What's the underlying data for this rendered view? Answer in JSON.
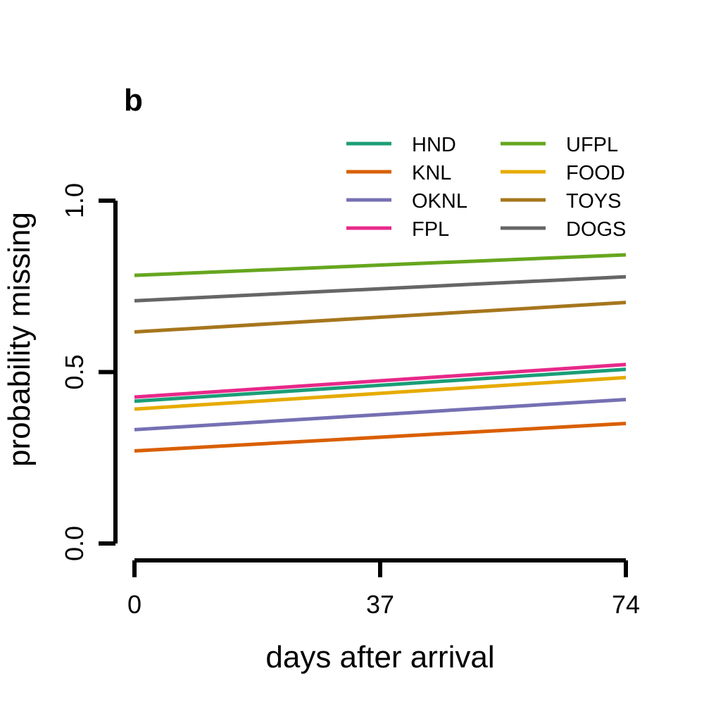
{
  "chart_data": {
    "type": "line",
    "panel_label": "b",
    "xlabel": "days after arrival",
    "ylabel": "probability missing",
    "xlim": [
      0,
      74
    ],
    "ylim": [
      0,
      1
    ],
    "x_ticks": [
      0,
      37,
      74
    ],
    "y_ticks": [
      0.0,
      0.5,
      1.0
    ],
    "y_tick_labels": [
      "0.0",
      "0.5",
      "1.0"
    ],
    "x_tick_labels": [
      "0",
      "37",
      "74"
    ],
    "grid": false,
    "legend_position": "top-right",
    "x": [
      0,
      74
    ],
    "series": [
      {
        "name": "HND",
        "color": "#1b9e77",
        "values": [
          0.415,
          0.508
        ]
      },
      {
        "name": "KNL",
        "color": "#d95f02",
        "values": [
          0.27,
          0.35
        ]
      },
      {
        "name": "OKNL",
        "color": "#7570b3",
        "values": [
          0.332,
          0.42
        ]
      },
      {
        "name": "FPL",
        "color": "#e7298a",
        "values": [
          0.427,
          0.522
        ]
      },
      {
        "name": "UFPL",
        "color": "#66a61e",
        "values": [
          0.782,
          0.842
        ]
      },
      {
        "name": "FOOD",
        "color": "#e6ab02",
        "values": [
          0.392,
          0.484
        ]
      },
      {
        "name": "TOYS",
        "color": "#a6761d",
        "values": [
          0.617,
          0.703
        ]
      },
      {
        "name": "DOGS",
        "color": "#666666",
        "values": [
          0.708,
          0.778
        ]
      }
    ]
  }
}
